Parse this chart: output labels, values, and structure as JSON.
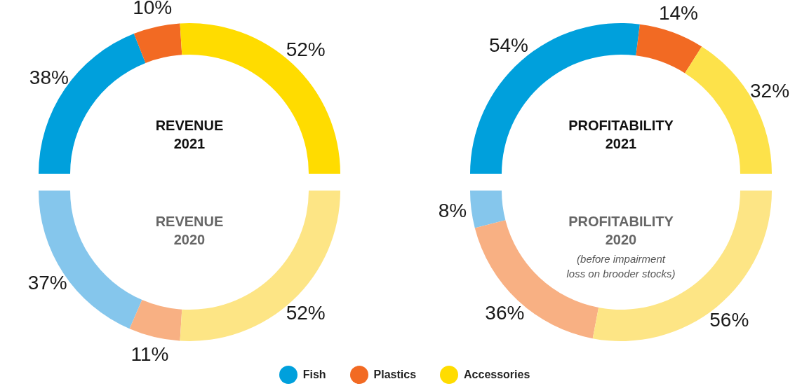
{
  "chart_data": [
    {
      "type": "donut",
      "title": "REVENUE 2021",
      "categories": [
        "Fish",
        "Plastics",
        "Accessories"
      ],
      "values": [
        38,
        10,
        52
      ],
      "value_labels": [
        "38%",
        "10%",
        "52%"
      ],
      "colors": [
        "#00a0dc",
        "#f26a23",
        "#ffdc00"
      ],
      "legend": "bottom"
    },
    {
      "type": "donut",
      "title": "PROFITABILITY 2021",
      "categories": [
        null,
        null,
        null
      ],
      "values": [
        54,
        14,
        32
      ],
      "value_labels": [
        "54%",
        "14%",
        "32%"
      ],
      "colors": [
        "#00a0dc",
        "#f26a23",
        "#fde24a"
      ]
    },
    {
      "type": "donut",
      "title": "REVENUE 2020",
      "categories": [
        null,
        null,
        null
      ],
      "values": [
        37,
        11,
        52
      ],
      "value_labels": [
        "37%",
        "11%",
        "52%"
      ],
      "colors": [
        "#85c6ec",
        "#f8b083",
        "#fde585"
      ]
    },
    {
      "type": "donut",
      "title": "PROFITABILITY 2020",
      "subtitle": "(before impairment loss on brooder stocks)",
      "categories": [
        null,
        null,
        null
      ],
      "values": [
        8,
        36,
        56
      ],
      "value_labels": [
        "8%",
        "36%",
        "56%"
      ],
      "colors": [
        "#85c6ec",
        "#f8b083",
        "#fde585"
      ]
    }
  ]
}
